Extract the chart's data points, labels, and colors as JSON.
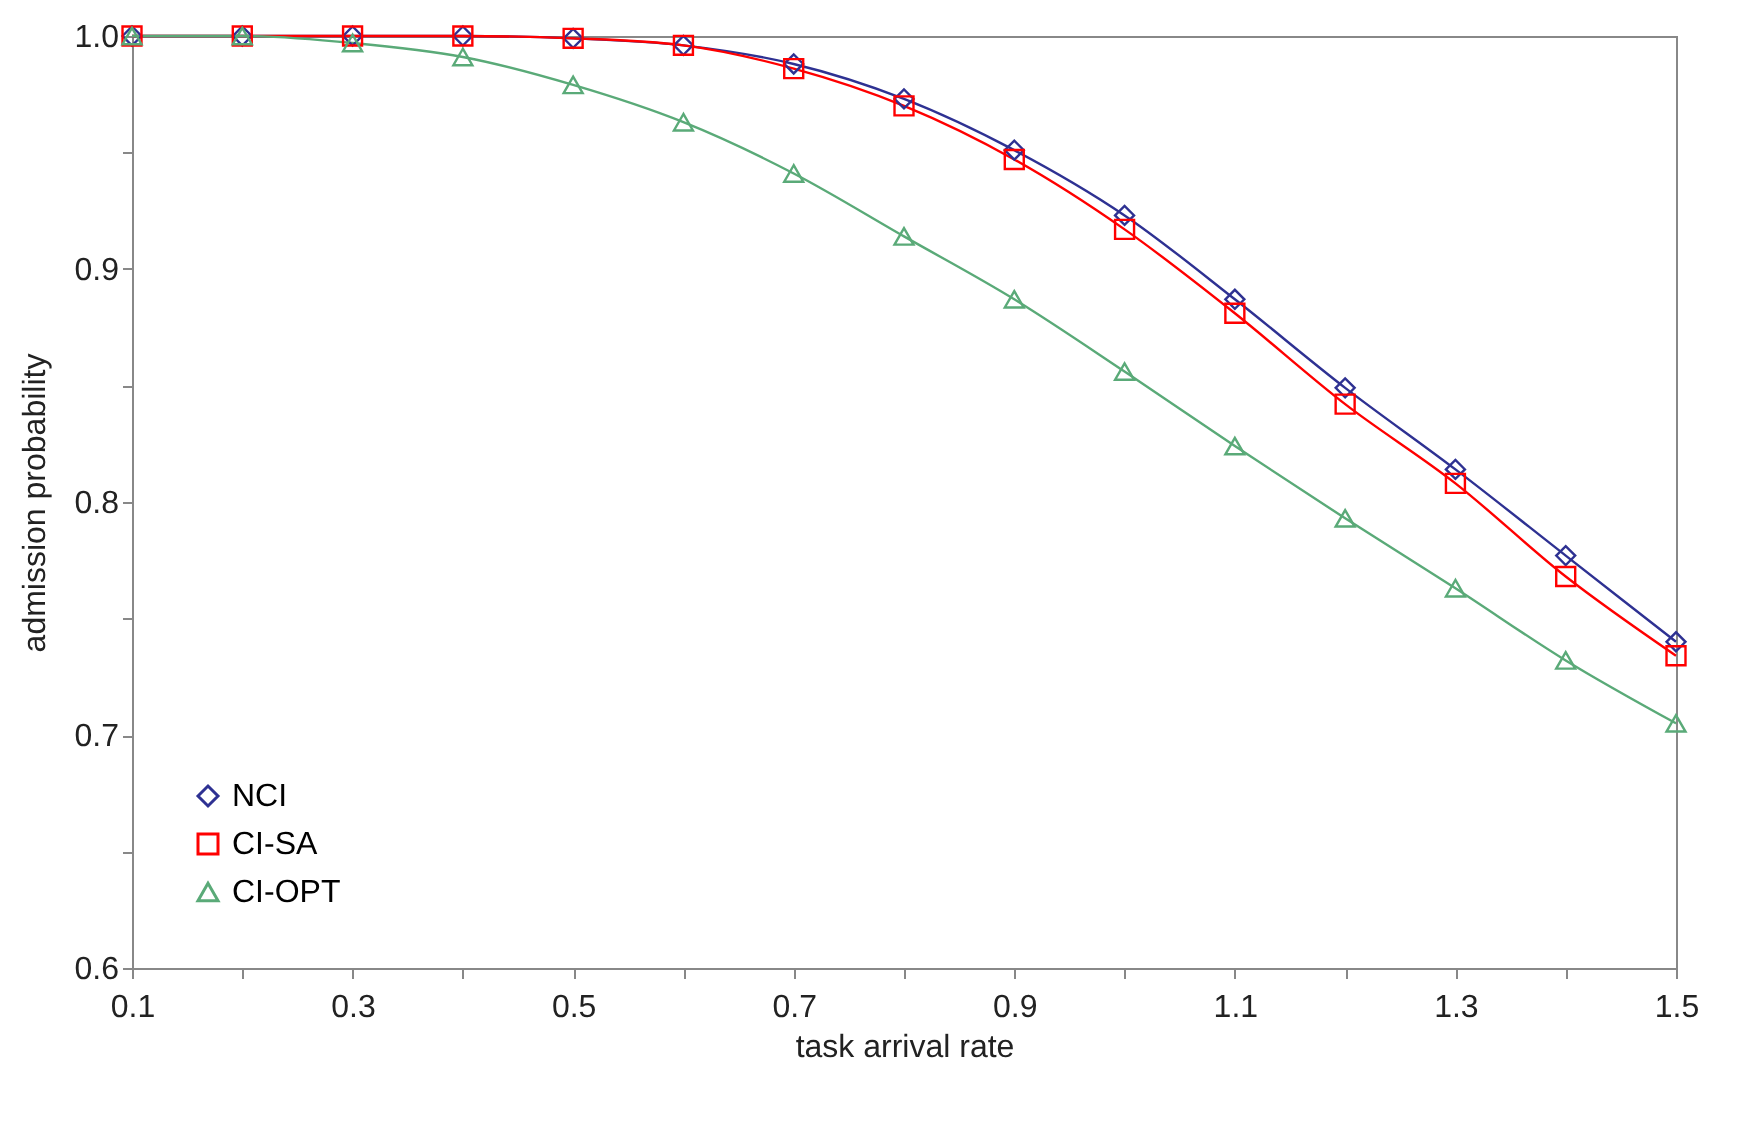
{
  "chart_data": {
    "type": "line",
    "xlabel": "task arrival rate",
    "ylabel": "admission probability",
    "x": [
      0.1,
      0.2,
      0.3,
      0.4,
      0.5,
      0.6,
      0.7,
      0.8,
      0.9,
      1.0,
      1.1,
      1.2,
      1.3,
      1.4,
      1.5
    ],
    "series": [
      {
        "name": "NCI",
        "color": "#2e3192",
        "marker": "diamond",
        "values": [
          1.0,
          1.0,
          1.0,
          1.0,
          0.999,
          0.996,
          0.988,
          0.973,
          0.951,
          0.923,
          0.887,
          0.849,
          0.814,
          0.777,
          0.74
        ]
      },
      {
        "name": "CI-SA",
        "color": "#ff0000",
        "marker": "square",
        "values": [
          1.0,
          1.0,
          1.0,
          1.0,
          0.999,
          0.996,
          0.986,
          0.97,
          0.947,
          0.917,
          0.881,
          0.842,
          0.808,
          0.768,
          0.734
        ]
      },
      {
        "name": "CI-OPT",
        "color": "#5aaa78",
        "marker": "triangle",
        "values": [
          1.0,
          1.0,
          0.997,
          0.991,
          0.979,
          0.963,
          0.941,
          0.914,
          0.887,
          0.856,
          0.824,
          0.793,
          0.763,
          0.732,
          0.705
        ]
      }
    ],
    "xlim": [
      0.1,
      1.5
    ],
    "ylim": [
      0.6,
      1.0
    ],
    "xticks": [
      0.1,
      {
        "value": 0.2,
        "label": null
      },
      0.3,
      {
        "value": 0.4,
        "label": null
      },
      0.5,
      {
        "value": 0.6,
        "label": null
      },
      0.7,
      {
        "value": 0.8,
        "label": null
      },
      0.9,
      {
        "value": 1.0,
        "label": null
      },
      1.1,
      {
        "value": 1.2,
        "label": null
      },
      1.3,
      {
        "value": 1.4,
        "label": null
      },
      1.5
    ],
    "yticks": [
      {
        "value": 0.6,
        "label": "0.6"
      },
      {
        "value": 0.65,
        "label": null
      },
      {
        "value": 0.7,
        "label": "0.7"
      },
      {
        "value": 0.75,
        "label": null
      },
      {
        "value": 0.8,
        "label": "0.8"
      },
      {
        "value": 0.85,
        "label": null
      },
      {
        "value": 0.9,
        "label": "0.9"
      },
      {
        "value": 0.95,
        "label": null
      },
      {
        "value": 1.0,
        "label": "1.0"
      }
    ],
    "legend": "bottom left",
    "grid": false,
    "line_style": "solid"
  }
}
